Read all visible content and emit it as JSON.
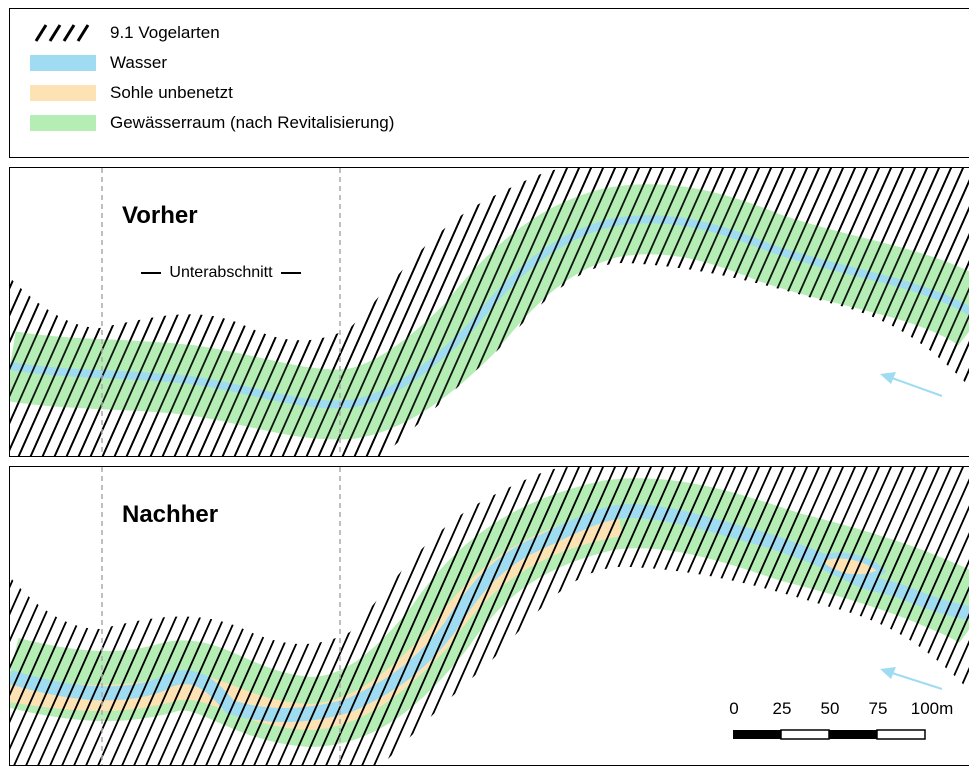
{
  "legend": {
    "items": [
      {
        "id": "hatch",
        "label": "9.1 Vogelarten"
      },
      {
        "id": "water",
        "label": "Wasser",
        "color": "#9fdcf2"
      },
      {
        "id": "bed",
        "label": "Sohle unbenetzt",
        "color": "#fde2b3"
      },
      {
        "id": "space",
        "label": "Gewässerraum (nach Revitalisierung)",
        "color": "#b4eeb4"
      }
    ]
  },
  "maps": {
    "before": {
      "title": "Vorher",
      "sub_label": "Unterabschnitt"
    },
    "after": {
      "title": "Nachher"
    }
  },
  "scale_bar": {
    "labels": [
      "0",
      "25",
      "50",
      "75",
      "100m"
    ]
  },
  "colors": {
    "hatch": "#000000",
    "water": "#9fdcf2",
    "bed": "#fde2b3",
    "space": "#b4eeb4",
    "flow_arrow": "#9fdcf2",
    "divider": "#aaaaaa"
  },
  "icons": {
    "flow": "flow-direction-arrow-icon"
  }
}
